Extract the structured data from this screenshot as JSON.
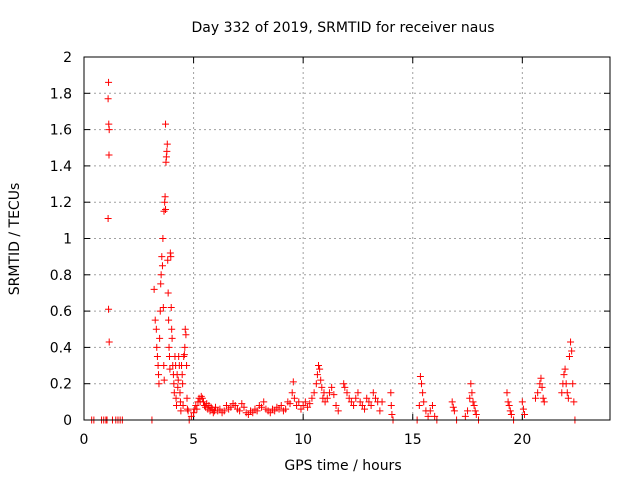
{
  "chart_data": {
    "type": "scatter",
    "title": "Day 332 of 2019, SRMTID for receiver naus",
    "xlabel": "GPS time / hours",
    "ylabel": "SRMTID / TECUs",
    "xlim": [
      0,
      24
    ],
    "ylim": [
      0,
      2
    ],
    "x_ticks": [
      0,
      5,
      10,
      15,
      20
    ],
    "x_tick_labels": [
      "0",
      "5",
      "10",
      "15",
      "20"
    ],
    "y_ticks": [
      0,
      0.2,
      0.4,
      0.6,
      0.8,
      1,
      1.2,
      1.4,
      1.6,
      1.8,
      2
    ],
    "y_tick_labels": [
      "0",
      "0.2",
      "0.4",
      "0.6",
      "0.8",
      "1",
      "1.2",
      "1.4",
      "1.6",
      "1.8",
      "2"
    ],
    "grid": true,
    "marker": "+",
    "color": "#ff0000",
    "series": [
      {
        "name": "SRMTID",
        "points": [
          [
            0.35,
            0
          ],
          [
            0.45,
            0
          ],
          [
            0.8,
            0
          ],
          [
            0.9,
            0
          ],
          [
            1.0,
            0
          ],
          [
            1.05,
            0
          ],
          [
            1.3,
            0
          ],
          [
            1.45,
            0
          ],
          [
            1.55,
            0
          ],
          [
            1.65,
            0
          ],
          [
            1.75,
            0
          ],
          [
            1.12,
            1.86
          ],
          [
            1.1,
            1.77
          ],
          [
            1.13,
            1.63
          ],
          [
            1.15,
            1.6
          ],
          [
            1.14,
            1.46
          ],
          [
            1.1,
            1.11
          ],
          [
            1.12,
            0.61
          ],
          [
            1.15,
            0.43
          ],
          [
            3.1,
            0
          ],
          [
            3.2,
            0.72
          ],
          [
            3.25,
            0.55
          ],
          [
            3.3,
            0.5
          ],
          [
            3.32,
            0.4
          ],
          [
            3.35,
            0.35
          ],
          [
            3.38,
            0.3
          ],
          [
            3.4,
            0.25
          ],
          [
            3.42,
            0.2
          ],
          [
            3.45,
            0.45
          ],
          [
            3.48,
            0.6
          ],
          [
            3.5,
            0.75
          ],
          [
            3.52,
            0.8
          ],
          [
            3.55,
            0.9
          ],
          [
            3.58,
            0.85
          ],
          [
            3.6,
            1.0
          ],
          [
            3.62,
            0.62
          ],
          [
            3.64,
            0.3
          ],
          [
            3.66,
            0.22
          ],
          [
            3.65,
            1.15
          ],
          [
            3.68,
            1.2
          ],
          [
            3.7,
            1.23
          ],
          [
            3.72,
            1.16
          ],
          [
            3.74,
            1.42
          ],
          [
            3.76,
            1.45
          ],
          [
            3.78,
            1.48
          ],
          [
            3.8,
            1.52
          ],
          [
            3.72,
            1.63
          ],
          [
            3.82,
            0.88
          ],
          [
            3.84,
            0.7
          ],
          [
            3.86,
            0.55
          ],
          [
            3.88,
            0.4
          ],
          [
            3.9,
            0.35
          ],
          [
            3.92,
            0.28
          ],
          [
            3.94,
            0.92
          ],
          [
            3.96,
            0.9
          ],
          [
            3.98,
            0.62
          ],
          [
            4.0,
            0.5
          ],
          [
            4.02,
            0.45
          ],
          [
            4.05,
            0.3
          ],
          [
            4.08,
            0.25
          ],
          [
            4.1,
            0.2
          ],
          [
            4.12,
            0.15
          ],
          [
            4.15,
            0.35
          ],
          [
            4.18,
            0.3
          ],
          [
            4.2,
            0.12
          ],
          [
            4.22,
            0.08
          ],
          [
            4.25,
            0.25
          ],
          [
            4.28,
            0.18
          ],
          [
            4.3,
            0.22
          ],
          [
            4.32,
            0.35
          ],
          [
            4.35,
            0.3
          ],
          [
            4.38,
            0.15
          ],
          [
            4.4,
            0.1
          ],
          [
            4.42,
            0.05
          ],
          [
            4.45,
            0.3
          ],
          [
            4.48,
            0.25
          ],
          [
            4.5,
            0.2
          ],
          [
            4.52,
            0.08
          ],
          [
            4.55,
            0.35
          ],
          [
            4.58,
            0.36
          ],
          [
            4.6,
            0.4
          ],
          [
            4.62,
            0.5
          ],
          [
            4.65,
            0.47
          ],
          [
            4.68,
            0.3
          ],
          [
            4.7,
            0.12
          ],
          [
            4.72,
            0.06
          ],
          [
            4.75,
            0.05
          ],
          [
            4.8,
            0
          ],
          [
            4.9,
            0.02
          ],
          [
            5.0,
            0.04
          ],
          [
            5.05,
            0.06
          ],
          [
            5.1,
            0.08
          ],
          [
            5.15,
            0.06
          ],
          [
            5.2,
            0.1
          ],
          [
            5.25,
            0.12
          ],
          [
            5.3,
            0.1
          ],
          [
            5.35,
            0.13
          ],
          [
            5.4,
            0.12
          ],
          [
            5.45,
            0.1
          ],
          [
            5.5,
            0.08
          ],
          [
            5.55,
            0.07
          ],
          [
            5.6,
            0.09
          ],
          [
            5.65,
            0.06
          ],
          [
            5.7,
            0.08
          ],
          [
            5.75,
            0.05
          ],
          [
            5.8,
            0.07
          ],
          [
            5.85,
            0.06
          ],
          [
            5.9,
            0.04
          ],
          [
            5.95,
            0.05
          ],
          [
            6.0,
            0.07
          ],
          [
            6.1,
            0.05
          ],
          [
            6.2,
            0.06
          ],
          [
            6.3,
            0.04
          ],
          [
            6.4,
            0.05
          ],
          [
            6.5,
            0.08
          ],
          [
            6.6,
            0.06
          ],
          [
            6.7,
            0.07
          ],
          [
            6.8,
            0.09
          ],
          [
            6.9,
            0.08
          ],
          [
            7.0,
            0.06
          ],
          [
            7.1,
            0.05
          ],
          [
            7.2,
            0.09
          ],
          [
            7.3,
            0.07
          ],
          [
            7.4,
            0.04
          ],
          [
            7.5,
            0.03
          ],
          [
            7.6,
            0.05
          ],
          [
            7.7,
            0.04
          ],
          [
            7.8,
            0.06
          ],
          [
            7.9,
            0.05
          ],
          [
            8.0,
            0.08
          ],
          [
            8.1,
            0.07
          ],
          [
            8.2,
            0.1
          ],
          [
            8.3,
            0.06
          ],
          [
            8.4,
            0.05
          ],
          [
            8.5,
            0.04
          ],
          [
            8.6,
            0.06
          ],
          [
            8.7,
            0.05
          ],
          [
            8.8,
            0.07
          ],
          [
            8.9,
            0.06
          ],
          [
            9.0,
            0.08
          ],
          [
            9.1,
            0.05
          ],
          [
            9.2,
            0.06
          ],
          [
            9.3,
            0.1
          ],
          [
            9.4,
            0.09
          ],
          [
            9.5,
            0.15
          ],
          [
            9.55,
            0.21
          ],
          [
            9.6,
            0.12
          ],
          [
            9.7,
            0.08
          ],
          [
            9.8,
            0.1
          ],
          [
            9.9,
            0.06
          ],
          [
            10.0,
            0.08
          ],
          [
            10.1,
            0.1
          ],
          [
            10.2,
            0.07
          ],
          [
            10.3,
            0.09
          ],
          [
            10.4,
            0.12
          ],
          [
            10.5,
            0.15
          ],
          [
            10.6,
            0.2
          ],
          [
            10.65,
            0.25
          ],
          [
            10.7,
            0.3
          ],
          [
            10.75,
            0.28
          ],
          [
            10.8,
            0.22
          ],
          [
            10.85,
            0.18
          ],
          [
            10.9,
            0.12
          ],
          [
            10.95,
            0.15
          ],
          [
            11.0,
            0.1
          ],
          [
            11.1,
            0.12
          ],
          [
            11.2,
            0.15
          ],
          [
            11.3,
            0.18
          ],
          [
            11.4,
            0.14
          ],
          [
            11.5,
            0.08
          ],
          [
            11.6,
            0.05
          ],
          [
            11.85,
            0.2
          ],
          [
            11.9,
            0.18
          ],
          [
            12.0,
            0.15
          ],
          [
            12.1,
            0.12
          ],
          [
            12.2,
            0.1
          ],
          [
            12.3,
            0.08
          ],
          [
            12.4,
            0.12
          ],
          [
            12.5,
            0.15
          ],
          [
            12.6,
            0.1
          ],
          [
            12.7,
            0.08
          ],
          [
            12.8,
            0.06
          ],
          [
            12.9,
            0.12
          ],
          [
            13.0,
            0.1
          ],
          [
            13.1,
            0.08
          ],
          [
            13.2,
            0.15
          ],
          [
            13.3,
            0.12
          ],
          [
            13.4,
            0.1
          ],
          [
            13.5,
            0.05
          ],
          [
            13.6,
            0.1
          ],
          [
            14.0,
            0.15
          ],
          [
            14.02,
            0.08
          ],
          [
            14.05,
            0.03
          ],
          [
            14.1,
            0
          ],
          [
            15.2,
            0
          ],
          [
            15.3,
            0.08
          ],
          [
            15.35,
            0.24
          ],
          [
            15.4,
            0.2
          ],
          [
            15.45,
            0.15
          ],
          [
            15.5,
            0.1
          ],
          [
            15.6,
            0.05
          ],
          [
            15.7,
            0.02
          ],
          [
            15.8,
            0.05
          ],
          [
            15.9,
            0.08
          ],
          [
            16.0,
            0.02
          ],
          [
            16.1,
            0
          ],
          [
            16.8,
            0.1
          ],
          [
            16.85,
            0.07
          ],
          [
            16.9,
            0.05
          ],
          [
            17.0,
            0
          ],
          [
            17.4,
            0.02
          ],
          [
            17.5,
            0.05
          ],
          [
            17.6,
            0.12
          ],
          [
            17.65,
            0.2
          ],
          [
            17.7,
            0.15
          ],
          [
            17.75,
            0.1
          ],
          [
            17.8,
            0.08
          ],
          [
            17.85,
            0.05
          ],
          [
            17.9,
            0.03
          ],
          [
            18.0,
            0
          ],
          [
            19.3,
            0.15
          ],
          [
            19.35,
            0.1
          ],
          [
            19.4,
            0.08
          ],
          [
            19.45,
            0.05
          ],
          [
            19.5,
            0.03
          ],
          [
            19.6,
            0
          ],
          [
            20.0,
            0.1
          ],
          [
            20.05,
            0.06
          ],
          [
            20.1,
            0.03
          ],
          [
            20.6,
            0.12
          ],
          [
            20.7,
            0.15
          ],
          [
            20.8,
            0.2
          ],
          [
            20.85,
            0.23
          ],
          [
            20.9,
            0.18
          ],
          [
            20.95,
            0.12
          ],
          [
            21.0,
            0.1
          ],
          [
            21.8,
            0.15
          ],
          [
            21.85,
            0.2
          ],
          [
            21.9,
            0.25
          ],
          [
            21.95,
            0.28
          ],
          [
            22.0,
            0.2
          ],
          [
            22.05,
            0.15
          ],
          [
            22.1,
            0.12
          ],
          [
            22.15,
            0.35
          ],
          [
            22.2,
            0.43
          ],
          [
            22.25,
            0.38
          ],
          [
            22.3,
            0.2
          ],
          [
            22.35,
            0.1
          ],
          [
            22.4,
            0
          ]
        ]
      }
    ]
  }
}
